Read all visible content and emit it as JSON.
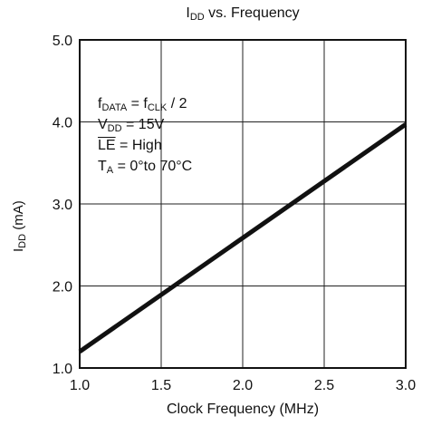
{
  "chart_data": {
    "type": "line",
    "title": {
      "main": "I",
      "sub": "DD",
      "rest": " vs. Frequency"
    },
    "xlabel": "Clock Frequency (MHz)",
    "ylabel": {
      "main": "I",
      "sub": "DD",
      "rest": " (mA)"
    },
    "xlim": [
      1.0,
      3.0
    ],
    "ylim": [
      1.0,
      5.0
    ],
    "x_ticks": [
      "1.0",
      "1.5",
      "2.0",
      "2.5",
      "3.0"
    ],
    "y_ticks": [
      "1.0",
      "2.0",
      "3.0",
      "4.0",
      "5.0"
    ],
    "grid": true,
    "series": [
      {
        "x": [
          1.0,
          3.0
        ],
        "y": [
          1.2,
          3.97
        ]
      }
    ],
    "annotations": {
      "line1": {
        "a": "f",
        "a_sub": "DATA",
        "b": " = f",
        "b_sub": "CLK",
        "c": " / 2"
      },
      "line2": {
        "a": "V",
        "a_sub": "DD",
        "b": " = 15V"
      },
      "line3": {
        "over": "LE",
        "rest": " = High"
      },
      "line4": {
        "a": "T",
        "a_sub": "A",
        "b": " = 0°to 70°C"
      }
    }
  }
}
